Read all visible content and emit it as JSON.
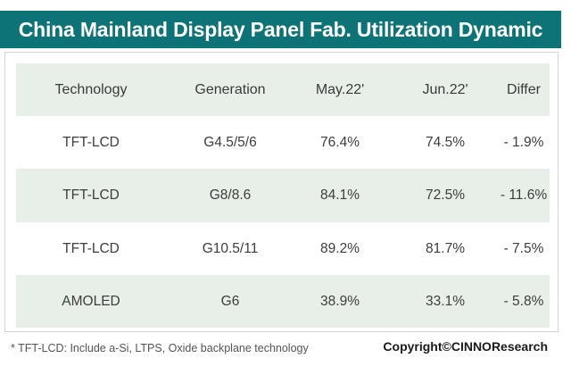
{
  "title": "China Mainland Display Panel Fab. Utilization Dynamic",
  "table": {
    "headers": [
      "Technology",
      "Generation",
      "May.22'",
      "Jun.22'",
      "Differ"
    ],
    "rows": [
      [
        "TFT-LCD",
        "G4.5/5/6",
        "76.4%",
        "74.5%",
        "- 1.9%"
      ],
      [
        "TFT-LCD",
        "G8/8.6",
        "84.1%",
        "72.5%",
        "- 11.6%"
      ],
      [
        "TFT-LCD",
        "G10.5/11",
        "89.2%",
        "81.7%",
        "- 7.5%"
      ],
      [
        "AMOLED",
        "G6",
        "38.9%",
        "33.1%",
        "- 5.8%"
      ]
    ]
  },
  "footnote": "* TFT-LCD: Include a-Si, LTPS, Oxide backplane technology",
  "copyright": "Copyright©CINNOResearch",
  "colors": {
    "banner": "#0e7377",
    "row_shade": "#e8efe8"
  }
}
